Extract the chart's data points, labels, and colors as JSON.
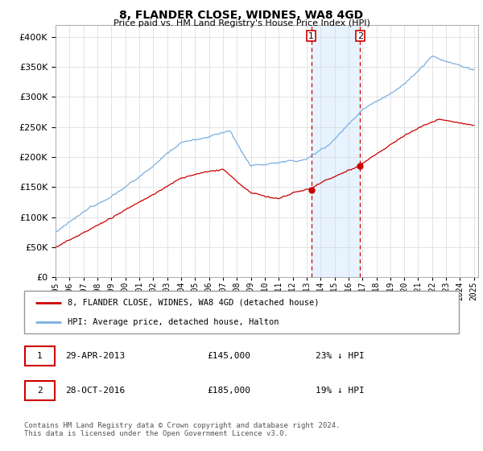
{
  "title": "8, FLANDER CLOSE, WIDNES, WA8 4GD",
  "subtitle": "Price paid vs. HM Land Registry's House Price Index (HPI)",
  "ylim": [
    0,
    420000
  ],
  "yticks": [
    0,
    50000,
    100000,
    150000,
    200000,
    250000,
    300000,
    350000,
    400000
  ],
  "hpi_color": "#7aafe0",
  "price_color": "#cc0000",
  "shade_color": "#ddeeff",
  "t1_year": 2013.33,
  "t2_year": 2016.83,
  "t1_price": 145000,
  "t2_price": 185000,
  "transaction1": {
    "date": "29-APR-2013",
    "price": "£145,000",
    "pct": "23% ↓ HPI",
    "label": "1"
  },
  "transaction2": {
    "date": "28-OCT-2016",
    "price": "£185,000",
    "pct": "19% ↓ HPI",
    "label": "2"
  },
  "legend_line1": "8, FLANDER CLOSE, WIDNES, WA8 4GD (detached house)",
  "legend_line2": "HPI: Average price, detached house, Halton",
  "footer": "Contains HM Land Registry data © Crown copyright and database right 2024.\nThis data is licensed under the Open Government Licence v3.0."
}
